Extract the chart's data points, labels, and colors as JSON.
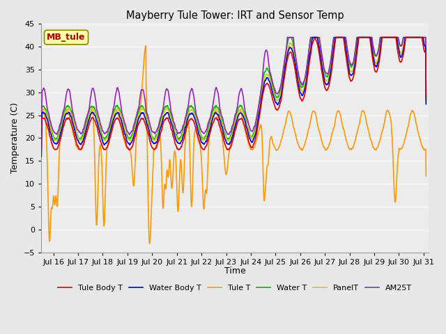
{
  "title": "Mayberry Tule Tower: IRT and Sensor Temp",
  "xlabel": "Time",
  "ylabel": "Temperature (C)",
  "ylim": [
    -5,
    45
  ],
  "xlim_days": [
    15.5,
    31.2
  ],
  "xtick_days": [
    16,
    17,
    18,
    19,
    20,
    21,
    22,
    23,
    24,
    25,
    26,
    27,
    28,
    29,
    30,
    31
  ],
  "xtick_labels": [
    "Jul 16",
    "Jul 17",
    "Jul 18",
    "Jul 19",
    "Jul 20",
    "Jul 21",
    "Jul 22",
    "Jul 23",
    "Jul 24",
    "Jul 25",
    "Jul 26",
    "Jul 27",
    "Jul 28",
    "Jul 29",
    "Jul 30",
    "Jul 31"
  ],
  "fig_bg_color": "#e8e8e8",
  "plot_bg_color": "#ececec",
  "grid_color": "#ffffff",
  "legend_entries": [
    {
      "label": "Tule Body T",
      "color": "#dd0000",
      "lw": 1.2
    },
    {
      "label": "Water Body T",
      "color": "#0000dd",
      "lw": 1.2
    },
    {
      "label": "Tule T",
      "color": "#ff9900",
      "lw": 1.2
    },
    {
      "label": "Water T",
      "color": "#00bb00",
      "lw": 1.2
    },
    {
      "label": "PanelT",
      "color": "#cccc00",
      "lw": 1.2
    },
    {
      "label": "AM25T",
      "color": "#9922bb",
      "lw": 1.2
    }
  ],
  "mb_tule_box": {
    "text": "MB_tule",
    "fontsize": 9,
    "color": "#aa0000",
    "bg": "#ffffaa",
    "border": "#888800"
  }
}
